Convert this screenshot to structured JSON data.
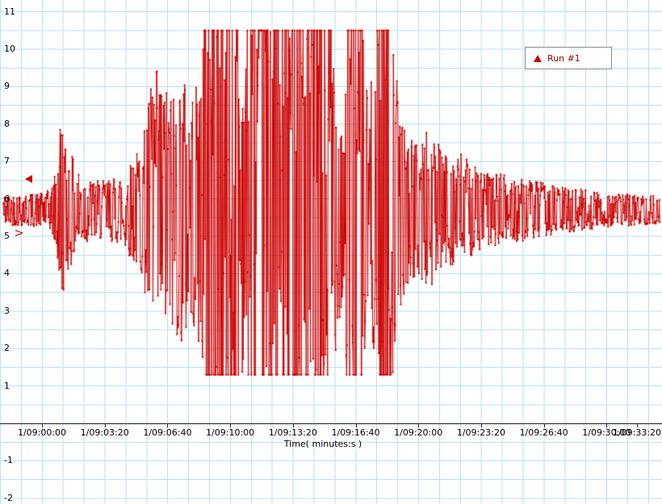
{
  "legend": {
    "label": "Run #1"
  },
  "y_axis": {
    "unit": "V",
    "ticks": [
      11,
      10,
      9,
      8,
      7,
      6,
      5,
      4,
      3,
      2,
      1,
      -1,
      -2
    ]
  },
  "x_axis": {
    "label": "Time( minutes:s )",
    "ticks": [
      {
        "label": "1/09:00:00",
        "t": 0
      },
      {
        "label": "1/09:03:20",
        "t": 200
      },
      {
        "label": "1/09:06:40",
        "t": 400
      },
      {
        "label": "1/09:10:00",
        "t": 600
      },
      {
        "label": "1/09:13:20",
        "t": 800
      },
      {
        "label": "1/09:16:40",
        "t": 1000
      },
      {
        "label": "1/09:20:00",
        "t": 1200
      },
      {
        "label": "1/09:23:20",
        "t": 1400
      },
      {
        "label": "1/09:26:40",
        "t": 1600
      },
      {
        "label": "1/09:30:00",
        "t": 1800
      },
      {
        "label": "1/09:33:20",
        "t": 2000
      }
    ]
  },
  "chart_data": {
    "type": "line",
    "title": "",
    "xlabel": "Time( minutes:s )",
    "ylabel": "V",
    "ylim": [
      -2,
      11
    ],
    "grid": true,
    "legend_position": "top-right",
    "series": [
      {
        "name": "Run #1",
        "color": "#cc0000",
        "marker": "dot"
      }
    ],
    "baseline": 5.7,
    "clip": [
      1.3,
      10.5
    ],
    "t_range_s": [
      -123,
      1971
    ],
    "sample_interval_s": 1.6,
    "noise_seed": 42,
    "envelope": [
      [
        -123,
        0.35
      ],
      [
        0,
        0.4
      ],
      [
        30,
        0.5
      ],
      [
        46,
        1.0
      ],
      [
        60,
        2.4
      ],
      [
        75,
        1.6
      ],
      [
        95,
        1.3
      ],
      [
        120,
        0.9
      ],
      [
        160,
        0.7
      ],
      [
        200,
        0.7
      ],
      [
        240,
        0.8
      ],
      [
        280,
        1.1
      ],
      [
        320,
        1.6
      ],
      [
        340,
        2.6
      ],
      [
        355,
        3.6
      ],
      [
        375,
        3.2
      ],
      [
        405,
        2.8
      ],
      [
        430,
        3.1
      ],
      [
        455,
        3.3
      ],
      [
        470,
        2.7
      ],
      [
        490,
        2.9
      ],
      [
        510,
        3.6
      ],
      [
        522,
        4.9
      ],
      [
        630,
        4.9
      ],
      [
        645,
        3.2
      ],
      [
        665,
        4.9
      ],
      [
        750,
        4.9
      ],
      [
        760,
        3.4
      ],
      [
        775,
        4.9
      ],
      [
        880,
        4.9
      ],
      [
        893,
        4.3
      ],
      [
        930,
        4.6
      ],
      [
        940,
        2.6
      ],
      [
        965,
        2.8
      ],
      [
        975,
        4.9
      ],
      [
        1025,
        4.9
      ],
      [
        1040,
        2.6
      ],
      [
        1057,
        3.4
      ],
      [
        1075,
        4.9
      ],
      [
        1100,
        4.9
      ],
      [
        1125,
        3.6
      ],
      [
        1145,
        2.2
      ],
      [
        1170,
        1.7
      ],
      [
        1200,
        1.6
      ],
      [
        1235,
        2.1
      ],
      [
        1255,
        1.7
      ],
      [
        1290,
        1.3
      ],
      [
        1330,
        1.4
      ],
      [
        1370,
        1.1
      ],
      [
        1420,
        0.9
      ],
      [
        1470,
        0.85
      ],
      [
        1520,
        0.75
      ],
      [
        1570,
        0.7
      ],
      [
        1620,
        0.6
      ],
      [
        1670,
        0.55
      ],
      [
        1720,
        0.5
      ],
      [
        1770,
        0.45
      ],
      [
        1820,
        0.4
      ],
      [
        1870,
        0.38
      ],
      [
        1920,
        0.35
      ],
      [
        1971,
        0.33
      ]
    ]
  },
  "colors": {
    "trace": "#cc0000",
    "grid": "#b6e2f1",
    "axis": "#222222",
    "legend_text": "#990000"
  }
}
